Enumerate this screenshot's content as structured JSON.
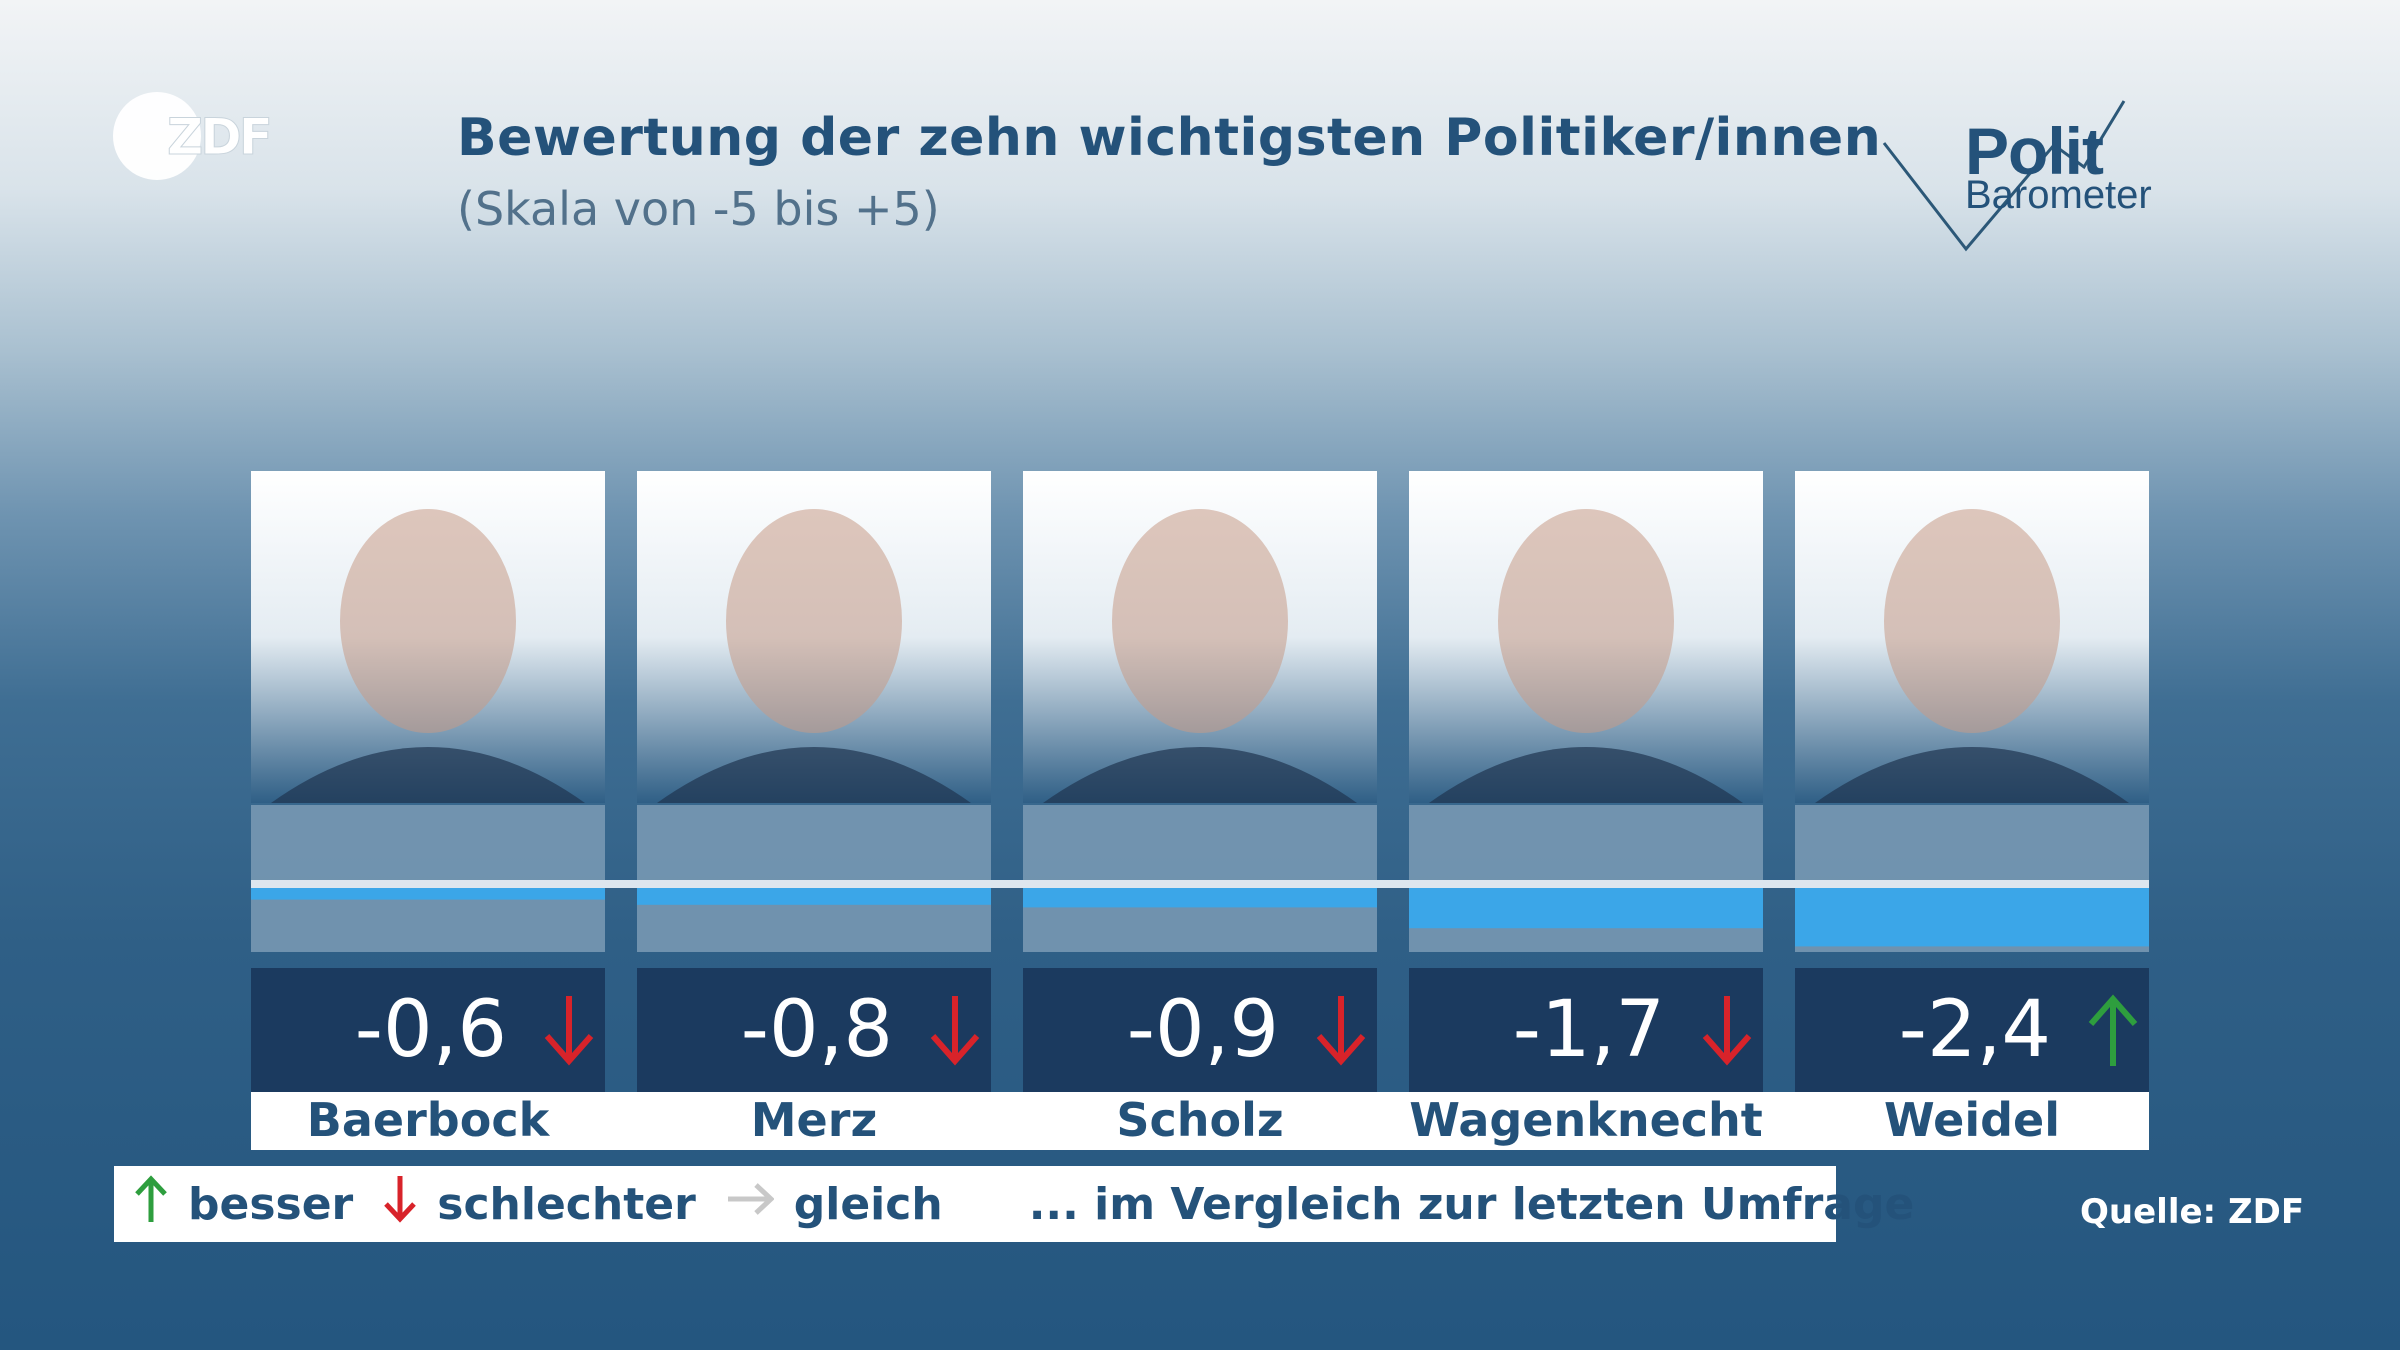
{
  "header": {
    "channel_logo_text": "ZDF",
    "title": "Bewertung der zehn wichtigsten Politiker/innen",
    "subtitle": "(Skala von -5 bis +5)",
    "brand_line1": "Polit",
    "brand_line2": "Barometer"
  },
  "chart_data": {
    "type": "bar",
    "title": "Bewertung der zehn wichtigsten Politiker/innen",
    "subtitle": "(Skala von -5 bis +5)",
    "ylim": [
      -5,
      5
    ],
    "categories": [
      "Baerbock",
      "Merz",
      "Scholz",
      "Wagenknecht",
      "Weidel"
    ],
    "values": [
      -0.6,
      -0.8,
      -0.9,
      -1.7,
      -2.4
    ],
    "labels": [
      "-0,6",
      "-0,8",
      "-0,9",
      "-1,7",
      "-2,4"
    ],
    "trend": [
      "down",
      "down",
      "down",
      "down",
      "up"
    ]
  },
  "legend": {
    "up_icon": "up-arrow-icon",
    "up_label": "besser",
    "down_icon": "down-arrow-icon",
    "down_label": "schlechter",
    "same_icon": "right-arrow-icon",
    "same_label": "gleich",
    "note": "... im Vergleich zur letzten Umfrage"
  },
  "source": "Quelle: ZDF",
  "colors": {
    "bar": "#3ba6e8",
    "track": "#7b9bb5",
    "value_box": "#1b3a5f",
    "up": "#2e9e3e",
    "down": "#d8232a",
    "same": "#c8c8c8",
    "text_dark": "#24527a"
  }
}
